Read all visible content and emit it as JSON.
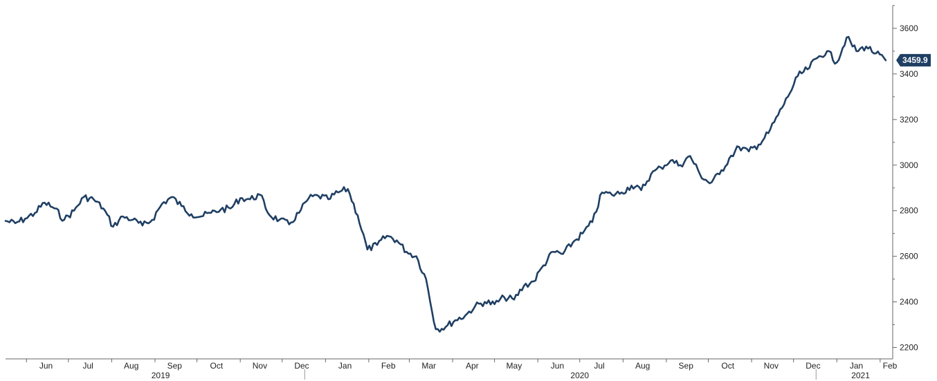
{
  "chart_data": {
    "type": "line",
    "title": "",
    "xlabel": "",
    "ylabel": "",
    "ylim": [
      2150,
      3700
    ],
    "y_ticks": [
      2200,
      2400,
      2600,
      2800,
      3000,
      3200,
      3400,
      3600
    ],
    "y_tick_labels": [
      "2200",
      "2400",
      "2600",
      "2800",
      "3000",
      "3200",
      "3400",
      "3600"
    ],
    "x_range": [
      "2019-05-17",
      "2021-02-10"
    ],
    "months": [
      {
        "label": "Jun",
        "date": "2019-06-15"
      },
      {
        "label": "Jul",
        "date": "2019-07-15"
      },
      {
        "label": "Aug",
        "date": "2019-08-15"
      },
      {
        "label": "Sep",
        "date": "2019-09-15"
      },
      {
        "label": "Oct",
        "date": "2019-10-15"
      },
      {
        "label": "Nov",
        "date": "2019-11-15"
      },
      {
        "label": "Dec",
        "date": "2019-12-15"
      },
      {
        "label": "Jan",
        "date": "2020-01-15"
      },
      {
        "label": "Feb",
        "date": "2020-02-15"
      },
      {
        "label": "Mar",
        "date": "2020-03-15"
      },
      {
        "label": "Apr",
        "date": "2020-04-15"
      },
      {
        "label": "May",
        "date": "2020-05-15"
      },
      {
        "label": "Jun",
        "date": "2020-06-15"
      },
      {
        "label": "Jul",
        "date": "2020-07-15"
      },
      {
        "label": "Aug",
        "date": "2020-08-15"
      },
      {
        "label": "Sep",
        "date": "2020-09-15"
      },
      {
        "label": "Oct",
        "date": "2020-10-15"
      },
      {
        "label": "Nov",
        "date": "2020-11-15"
      },
      {
        "label": "Dec",
        "date": "2020-12-15"
      },
      {
        "label": "Jan",
        "date": "2021-01-15"
      },
      {
        "label": "Feb",
        "date": "2021-02-08"
      }
    ],
    "month_ticks": [
      "2019-06-01",
      "2019-07-01",
      "2019-08-01",
      "2019-09-01",
      "2019-10-01",
      "2019-11-01",
      "2019-12-01",
      "2020-01-01",
      "2020-02-01",
      "2020-03-01",
      "2020-04-01",
      "2020-05-01",
      "2020-06-01",
      "2020-07-01",
      "2020-08-01",
      "2020-09-01",
      "2020-10-01",
      "2020-11-01",
      "2020-12-01",
      "2021-01-01",
      "2021-02-01"
    ],
    "years": [
      {
        "label": "2019",
        "date": "2019-09-05"
      },
      {
        "label": "2020",
        "date": "2020-07-01"
      },
      {
        "label": "2021",
        "date": "2021-01-18"
      }
    ],
    "year_separators": [
      "2020-01-01",
      "2021-01-01"
    ],
    "series": [
      {
        "color": "#1f3f63",
        "x": [
          "2019-05-17",
          "2019-05-24",
          "2019-05-31",
          "2019-06-07",
          "2019-06-14",
          "2019-06-21",
          "2019-06-28",
          "2019-07-05",
          "2019-07-12",
          "2019-07-19",
          "2019-07-26",
          "2019-08-02",
          "2019-08-09",
          "2019-08-16",
          "2019-08-23",
          "2019-08-30",
          "2019-09-06",
          "2019-09-13",
          "2019-09-20",
          "2019-09-27",
          "2019-10-04",
          "2019-10-11",
          "2019-10-18",
          "2019-10-25",
          "2019-11-01",
          "2019-11-08",
          "2019-11-15",
          "2019-11-22",
          "2019-11-29",
          "2019-12-06",
          "2019-12-13",
          "2019-12-20",
          "2019-12-27",
          "2020-01-03",
          "2020-01-10",
          "2020-01-17",
          "2020-01-24",
          "2020-01-31",
          "2020-02-07",
          "2020-02-14",
          "2020-02-21",
          "2020-02-28",
          "2020-03-06",
          "2020-03-13",
          "2020-03-20",
          "2020-03-27",
          "2020-04-03",
          "2020-04-10",
          "2020-04-17",
          "2020-04-24",
          "2020-05-01",
          "2020-05-08",
          "2020-05-15",
          "2020-05-22",
          "2020-05-29",
          "2020-06-05",
          "2020-06-12",
          "2020-06-19",
          "2020-06-26",
          "2020-07-03",
          "2020-07-10",
          "2020-07-17",
          "2020-07-24",
          "2020-07-31",
          "2020-08-07",
          "2020-08-14",
          "2020-08-21",
          "2020-08-28",
          "2020-09-04",
          "2020-09-11",
          "2020-09-18",
          "2020-09-25",
          "2020-10-02",
          "2020-10-09",
          "2020-10-16",
          "2020-10-23",
          "2020-10-30",
          "2020-11-06",
          "2020-11-13",
          "2020-11-20",
          "2020-11-27",
          "2020-12-04",
          "2020-12-11",
          "2020-12-18",
          "2020-12-25",
          "2021-01-01",
          "2021-01-08",
          "2021-01-15",
          "2021-01-22",
          "2021-01-29",
          "2021-02-05"
        ],
        "values": [
          2755,
          2745,
          2765,
          2790,
          2835,
          2810,
          2760,
          2800,
          2860,
          2850,
          2810,
          2730,
          2775,
          2760,
          2735,
          2760,
          2830,
          2860,
          2820,
          2785,
          2775,
          2790,
          2805,
          2810,
          2855,
          2850,
          2870,
          2780,
          2760,
          2740,
          2790,
          2855,
          2865,
          2850,
          2880,
          2895,
          2780,
          2630,
          2650,
          2690,
          2670,
          2620,
          2600,
          2500,
          2280,
          2290,
          2320,
          2340,
          2380,
          2400,
          2390,
          2420,
          2410,
          2470,
          2490,
          2560,
          2620,
          2610,
          2660,
          2700,
          2750,
          2880,
          2870,
          2880,
          2910,
          2890,
          2960,
          2990,
          3020,
          3000,
          3040,
          2960,
          2920,
          2960,
          3030,
          3080,
          3060,
          3090,
          3140,
          3220,
          3300,
          3390,
          3420,
          3470,
          3500,
          3450,
          3560,
          3500,
          3520,
          3490,
          3459.9
        ]
      }
    ],
    "last_value": "3459.9",
    "grid": false,
    "legend": "none"
  }
}
